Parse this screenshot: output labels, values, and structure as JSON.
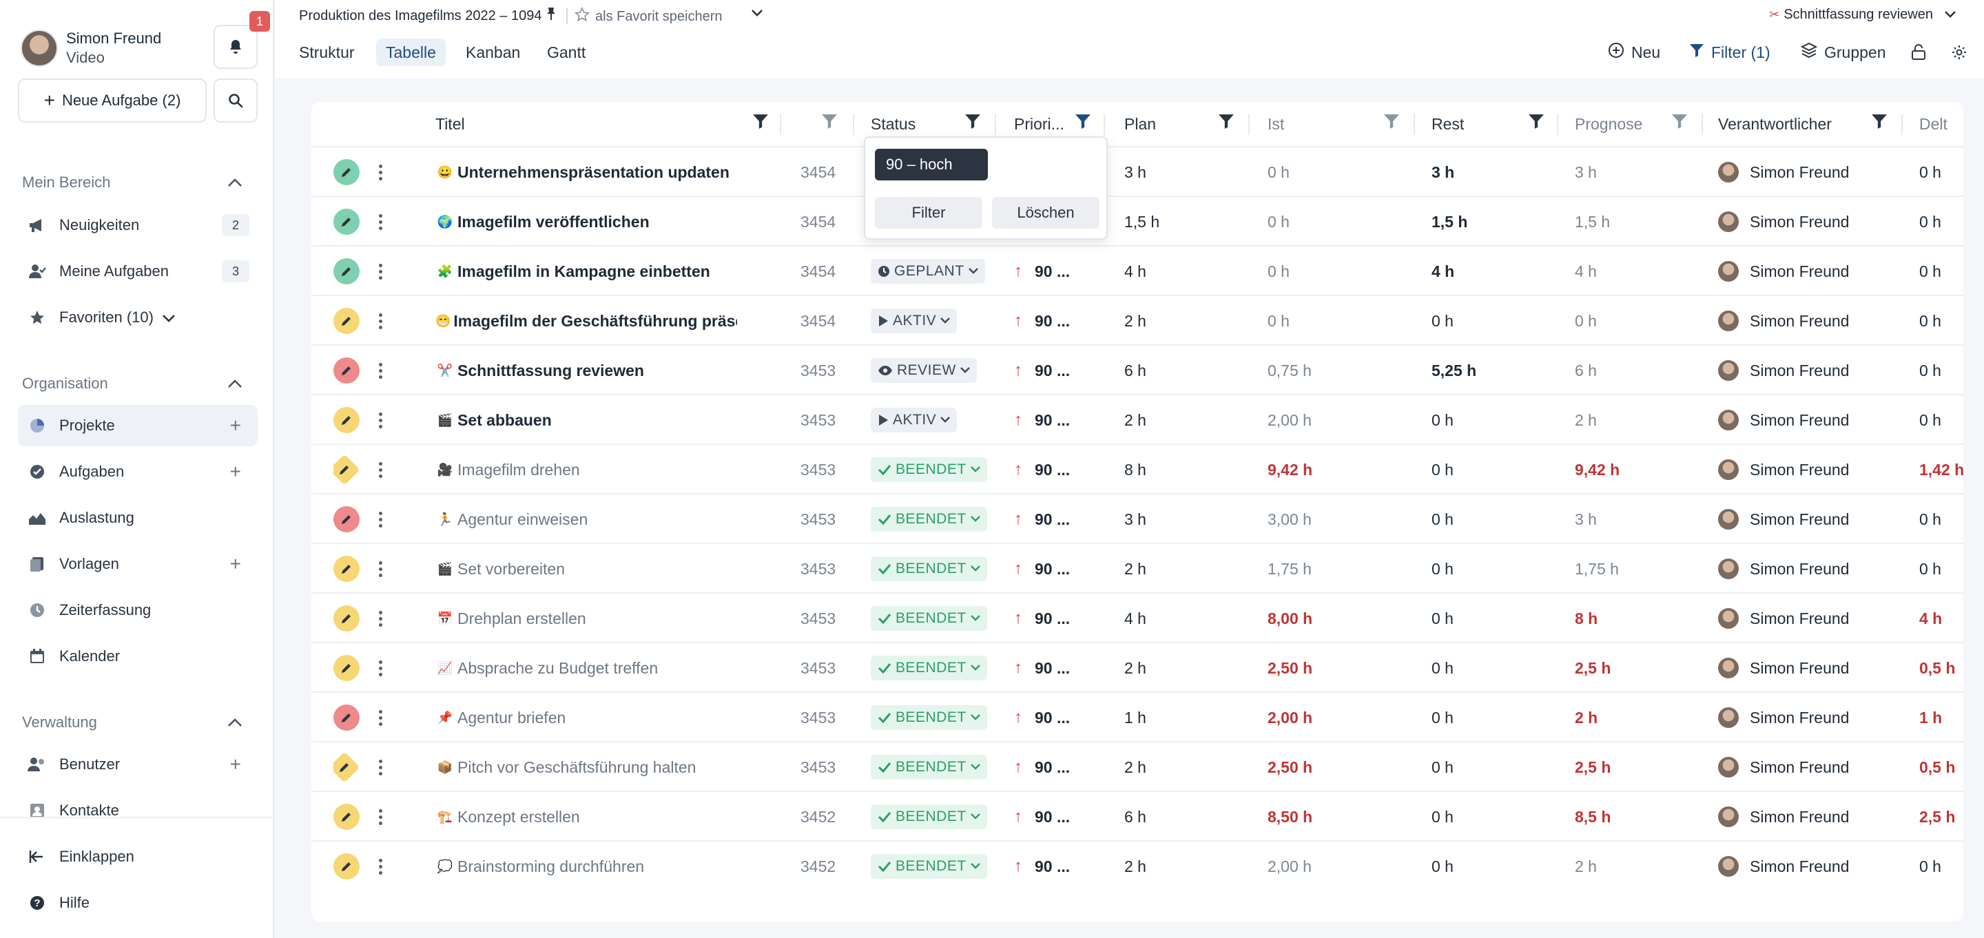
{
  "user": {
    "name": "Simon Freund",
    "role": "Video",
    "notification_count": "1"
  },
  "sidebar": {
    "new_task_label": "Neue Aufgabe (2)",
    "sections": [
      {
        "title": "Mein Bereich",
        "items": [
          {
            "label": "Neuigkeiten",
            "icon": "megaphone-icon",
            "count": "2"
          },
          {
            "label": "Meine Aufgaben",
            "icon": "user-task-icon",
            "count": "3"
          },
          {
            "label": "Favoriten (10)",
            "icon": "star-icon"
          }
        ]
      },
      {
        "title": "Organisation",
        "items": [
          {
            "label": "Projekte",
            "icon": "pie-icon"
          },
          {
            "label": "Aufgaben",
            "icon": "check-icon"
          },
          {
            "label": "Auslastung",
            "icon": "chart-icon"
          },
          {
            "label": "Vorlagen",
            "icon": "template-icon"
          },
          {
            "label": "Zeiterfassung",
            "icon": "clock-icon"
          },
          {
            "label": "Kalender",
            "icon": "calendar-icon"
          }
        ]
      },
      {
        "title": "Verwaltung",
        "items": [
          {
            "label": "Benutzer",
            "icon": "users-icon"
          },
          {
            "label": "Kontakte",
            "icon": "contacts-icon"
          }
        ]
      }
    ],
    "collapse_label": "Einklappen",
    "help_label": "Hilfe"
  },
  "header": {
    "project_title": "Produktion des Imagefilms 2022 – 1094",
    "favorite_label": "als Favorit speichern",
    "current_task": "Schnittfassung reviewen",
    "tabs": [
      "Struktur",
      "Tabelle",
      "Kanban",
      "Gantt"
    ],
    "active_tab": "Tabelle",
    "actions": {
      "new": "Neu",
      "filter": "Filter (1)",
      "groups": "Gruppen"
    }
  },
  "table": {
    "columns": {
      "title": "Titel",
      "status": "Status",
      "priority": "Priori...",
      "plan": "Plan",
      "ist": "Ist",
      "rest": "Rest",
      "prognose": "Prognose",
      "responsible": "Verantwortlicher",
      "delta": "Delt"
    },
    "rows": [
      {
        "title": "Unternehmenspräsentation updaten",
        "emoji": "😀",
        "id": "3454",
        "status": "",
        "prio": "",
        "plan": "3 h",
        "ist": "0 h",
        "rest": "3 h",
        "prognose": "3 h",
        "resp": "Simon Freund",
        "delta": "0 h",
        "icon": "green",
        "done": false,
        "red": false
      },
      {
        "title": "Imagefilm veröffentlichen",
        "emoji": "🌍",
        "id": "3454",
        "status": "",
        "prio": "",
        "plan": "1,5 h",
        "ist": "0 h",
        "rest": "1,5 h",
        "prognose": "1,5 h",
        "resp": "Simon Freund",
        "delta": "0 h",
        "icon": "green",
        "done": false,
        "red": false
      },
      {
        "title": "Imagefilm in Kampagne einbetten",
        "emoji": "🧩",
        "id": "3454",
        "status": "GEPLANT",
        "prio": "90 ...",
        "plan": "4 h",
        "ist": "0 h",
        "rest": "4 h",
        "prognose": "4 h",
        "resp": "Simon Freund",
        "delta": "0 h",
        "icon": "green",
        "done": false,
        "red": false
      },
      {
        "title": "Imagefilm der Geschäftsführung präsentieren",
        "emoji": "😁",
        "id": "3454",
        "status": "AKTIV",
        "prio": "90 ...",
        "plan": "2 h",
        "ist": "0 h",
        "rest": "0 h",
        "prognose": "0 h",
        "resp": "Simon Freund",
        "delta": "0 h",
        "icon": "yellow",
        "done": false,
        "red": false
      },
      {
        "title": "Schnittfassung reviewen",
        "emoji": "✂️",
        "id": "3453",
        "status": "REVIEW",
        "prio": "90 ...",
        "plan": "6 h",
        "ist": "0,75 h",
        "rest": "5,25 h",
        "prognose": "6 h",
        "resp": "Simon Freund",
        "delta": "0 h",
        "icon": "red",
        "done": false,
        "red": false
      },
      {
        "title": "Set abbauen",
        "emoji": "🎬",
        "id": "3453",
        "status": "AKTIV",
        "prio": "90 ...",
        "plan": "2 h",
        "ist": "2,00 h",
        "rest": "0 h",
        "prognose": "2 h",
        "resp": "Simon Freund",
        "delta": "0 h",
        "icon": "yellow",
        "done": false,
        "red": false
      },
      {
        "title": "Imagefilm drehen",
        "emoji": "🎥",
        "id": "3453",
        "status": "BEENDET",
        "prio": "90 ...",
        "plan": "8 h",
        "ist": "9,42 h",
        "rest": "0 h",
        "prognose": "9,42 h",
        "resp": "Simon Freund",
        "delta": "1,42 h",
        "icon": "yellow-diamond",
        "done": true,
        "red": true
      },
      {
        "title": "Agentur einweisen",
        "emoji": "🏃",
        "id": "3453",
        "status": "BEENDET",
        "prio": "90 ...",
        "plan": "3 h",
        "ist": "3,00 h",
        "rest": "0 h",
        "prognose": "3 h",
        "resp": "Simon Freund",
        "delta": "0 h",
        "icon": "red",
        "done": true,
        "red": false
      },
      {
        "title": "Set vorbereiten",
        "emoji": "🎬",
        "id": "3453",
        "status": "BEENDET",
        "prio": "90 ...",
        "plan": "2 h",
        "ist": "1,75 h",
        "rest": "0 h",
        "prognose": "1,75 h",
        "resp": "Simon Freund",
        "delta": "0 h",
        "icon": "yellow",
        "done": true,
        "red": false
      },
      {
        "title": "Drehplan erstellen",
        "emoji": "📅",
        "id": "3453",
        "status": "BEENDET",
        "prio": "90 ...",
        "plan": "4 h",
        "ist": "8,00 h",
        "rest": "0 h",
        "prognose": "8 h",
        "resp": "Simon Freund",
        "delta": "4 h",
        "icon": "yellow",
        "done": true,
        "red": true
      },
      {
        "title": "Absprache zu Budget treffen",
        "emoji": "📈",
        "id": "3453",
        "status": "BEENDET",
        "prio": "90 ...",
        "plan": "2 h",
        "ist": "2,50 h",
        "rest": "0 h",
        "prognose": "2,5 h",
        "resp": "Simon Freund",
        "delta": "0,5 h",
        "icon": "yellow",
        "done": true,
        "red": true
      },
      {
        "title": "Agentur briefen",
        "emoji": "📌",
        "id": "3453",
        "status": "BEENDET",
        "prio": "90 ...",
        "plan": "1 h",
        "ist": "2,00 h",
        "rest": "0 h",
        "prognose": "2 h",
        "resp": "Simon Freund",
        "delta": "1 h",
        "icon": "red",
        "done": true,
        "red": true
      },
      {
        "title": "Pitch vor Geschäftsführung halten",
        "emoji": "📦",
        "id": "3453",
        "status": "BEENDET",
        "prio": "90 ...",
        "plan": "2 h",
        "ist": "2,50 h",
        "rest": "0 h",
        "prognose": "2,5 h",
        "resp": "Simon Freund",
        "delta": "0,5 h",
        "icon": "yellow-diamond",
        "done": true,
        "red": true
      },
      {
        "title": "Konzept erstellen",
        "emoji": "🏗️",
        "id": "3452",
        "status": "BEENDET",
        "prio": "90 ...",
        "plan": "6 h",
        "ist": "8,50 h",
        "rest": "0 h",
        "prognose": "8,5 h",
        "resp": "Simon Freund",
        "delta": "2,5 h",
        "icon": "yellow",
        "done": true,
        "red": true
      },
      {
        "title": "Brainstorming durchführen",
        "emoji": "💭",
        "id": "3452",
        "status": "BEENDET",
        "prio": "90 ...",
        "plan": "2 h",
        "ist": "2,00 h",
        "rest": "0 h",
        "prognose": "2 h",
        "resp": "Simon Freund",
        "delta": "0 h",
        "icon": "yellow",
        "done": true,
        "red": false
      }
    ]
  },
  "filter_popover": {
    "value": "90 – hoch",
    "apply_label": "Filter",
    "clear_label": "Löschen"
  },
  "colors": {
    "accent": "#1e4d82",
    "icon_green": "#7fd0b0",
    "icon_yellow": "#f6d774",
    "icon_red": "#ee8a8a",
    "done_green": "#2f9e6a",
    "overrun_red": "#c03434"
  }
}
